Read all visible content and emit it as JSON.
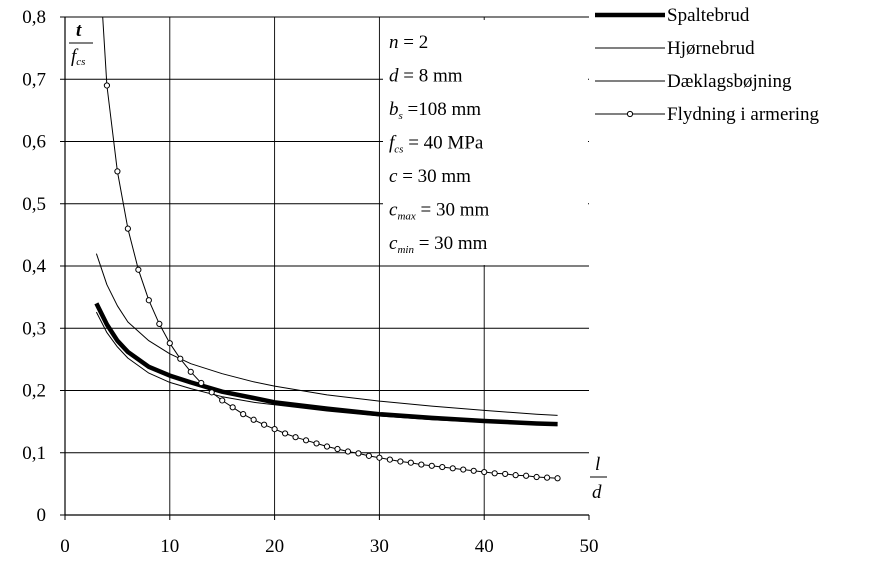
{
  "chart_data": {
    "type": "line",
    "xlim": [
      0,
      50
    ],
    "ylim": [
      0,
      0.8
    ],
    "x_ticks": [
      "0",
      "10",
      "20",
      "30",
      "40",
      "50"
    ],
    "y_ticks": [
      "0",
      "0,1",
      "0,2",
      "0,3",
      "0,4",
      "0,5",
      "0,6",
      "0,7",
      "0,8"
    ],
    "grid": true,
    "legend_position": "top-right",
    "ylabel": {
      "numerator": "t",
      "denominator": "f",
      "denominator_sub": "cs"
    },
    "xlabel": {
      "numerator": "l",
      "denominator": "d"
    },
    "parameters": [
      {
        "sym": "n",
        "sub": "",
        "text": " = 2"
      },
      {
        "sym": "d",
        "sub": "",
        "text": " = 8 mm"
      },
      {
        "sym": "b",
        "sub": "s",
        "text": " =108 mm"
      },
      {
        "sym": "f",
        "sub": "cs",
        "text": " = 40 MPa"
      },
      {
        "sym": "c",
        "sub": "",
        "text": " = 30 mm"
      },
      {
        "sym": "c",
        "sub": "max",
        "text": " = 30 mm"
      },
      {
        "sym": "c",
        "sub": "min",
        "text": " = 30 mm"
      }
    ],
    "series": [
      {
        "name": "Spaltebrud",
        "style": "thick",
        "x": [
          3,
          4,
          5,
          6,
          8,
          10,
          12,
          15,
          18,
          20,
          25,
          30,
          35,
          40,
          45,
          47
        ],
        "y": [
          0.34,
          0.306,
          0.28,
          0.262,
          0.238,
          0.224,
          0.213,
          0.198,
          0.188,
          0.181,
          0.171,
          0.162,
          0.156,
          0.151,
          0.147,
          0.146
        ]
      },
      {
        "name": "Hjørnebrud",
        "style": "thin",
        "x": [
          3,
          4,
          5,
          6,
          8,
          10,
          12,
          15,
          18,
          20,
          25,
          30,
          35,
          40,
          45,
          47
        ],
        "y": [
          0.42,
          0.37,
          0.336,
          0.31,
          0.28,
          0.259,
          0.243,
          0.227,
          0.214,
          0.207,
          0.193,
          0.183,
          0.175,
          0.168,
          0.162,
          0.16
        ]
      },
      {
        "name": "Dæklagsbøjning",
        "style": "thin",
        "x": [
          3,
          4,
          5,
          6,
          8,
          10,
          12,
          15,
          18,
          20,
          25,
          30,
          35,
          40,
          45,
          47
        ],
        "y": [
          0.326,
          0.293,
          0.27,
          0.252,
          0.228,
          0.213,
          0.203,
          0.19,
          0.181,
          0.177,
          0.167,
          0.159,
          0.153,
          0.149,
          0.145,
          0.144
        ]
      },
      {
        "name": "Flydning i armering",
        "style": "marker",
        "x": [
          3.6,
          4,
          5,
          6,
          7,
          8,
          9,
          10,
          11,
          12,
          13,
          14,
          15,
          16,
          17,
          18,
          19,
          20,
          21,
          22,
          23,
          24,
          25,
          26,
          27,
          28,
          29,
          30,
          31,
          32,
          33,
          34,
          35,
          36,
          37,
          38,
          39,
          40,
          41,
          42,
          43,
          44,
          45,
          46,
          47
        ],
        "y": [
          0.8,
          0.69,
          0.552,
          0.46,
          0.394,
          0.345,
          0.307,
          0.276,
          0.251,
          0.23,
          0.212,
          0.197,
          0.184,
          0.173,
          0.162,
          0.153,
          0.145,
          0.138,
          0.131,
          0.125,
          0.12,
          0.115,
          0.11,
          0.106,
          0.102,
          0.099,
          0.095,
          0.092,
          0.089,
          0.086,
          0.084,
          0.081,
          0.079,
          0.077,
          0.075,
          0.073,
          0.071,
          0.069,
          0.067,
          0.066,
          0.064,
          0.063,
          0.061,
          0.06,
          0.059
        ]
      }
    ]
  }
}
